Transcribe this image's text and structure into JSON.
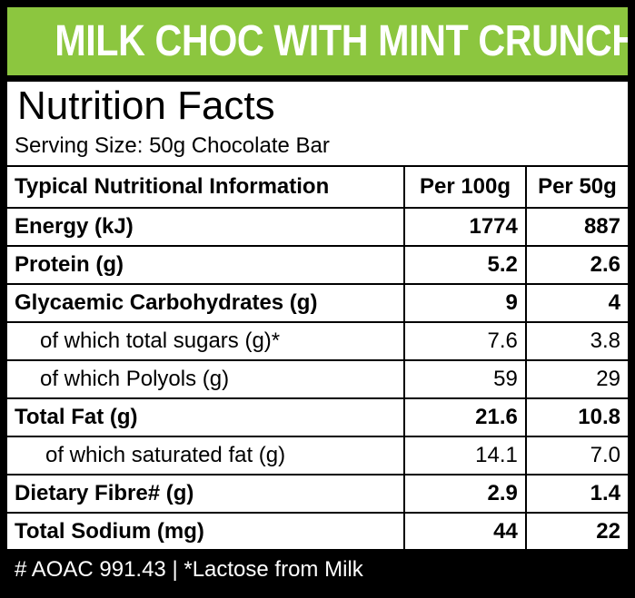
{
  "banner": {
    "title": "MILK CHOC WITH MINT CRUNCH"
  },
  "panel": {
    "heading": "Nutrition Facts",
    "serving_size": "Serving Size: 50g Chocolate Bar"
  },
  "table": {
    "headers": [
      "Typical Nutritional Information",
      "Per 100g",
      "Per 50g"
    ],
    "rows": [
      {
        "label": "Energy (kJ)",
        "per_100g": "1774",
        "per_50g": "887",
        "style": "bold"
      },
      {
        "label": "Protein (g)",
        "per_100g": "5.2",
        "per_50g": "2.6",
        "style": "bold"
      },
      {
        "label": "Glycaemic Carbohydrates (g)",
        "per_100g": "9",
        "per_50g": "4",
        "style": "bold"
      },
      {
        "label": "of which total sugars (g)*",
        "per_100g": "7.6",
        "per_50g": "3.8",
        "style": "sub"
      },
      {
        "label": "of which Polyols (g)",
        "per_100g": "59",
        "per_50g": "29",
        "style": "sub"
      },
      {
        "label": "Total Fat (g)",
        "per_100g": "21.6",
        "per_50g": "10.8",
        "style": "bold"
      },
      {
        "label": "of which saturated fat (g)",
        "per_100g": "14.1",
        "per_50g": "7.0",
        "style": "sub2"
      },
      {
        "label": "Dietary Fibre# (g)",
        "per_100g": "2.9",
        "per_50g": "1.4",
        "style": "bold"
      },
      {
        "label": "Total Sodium (mg)",
        "per_100g": "44",
        "per_50g": "22",
        "style": "bold"
      }
    ]
  },
  "footer": {
    "note": "# AOAC 991.43 | *Lactose from Milk"
  },
  "colors": {
    "banner": "#8cc63f",
    "frame": "#000000",
    "panel": "#ffffff"
  }
}
